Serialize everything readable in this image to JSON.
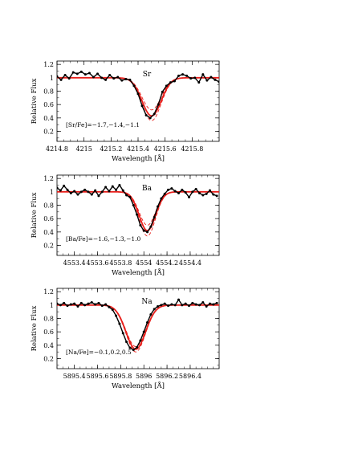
{
  "chart_data": [
    {
      "type": "line",
      "element": "Sr",
      "annotation": "[Sr/Fe]=−1.7,−1.4,−1.1",
      "xlabel": "Wavelength [Å]",
      "ylabel": "Relative Flux",
      "xlim": [
        4214.8,
        4216.0
      ],
      "ylim": [
        0.05,
        1.25
      ],
      "xticks": [
        4214.8,
        4215.0,
        4215.2,
        4215.4,
        4215.6,
        4215.8
      ],
      "xtick_labels": [
        "4214.8",
        "4215",
        "4215.2",
        "4215.4",
        "4215.6",
        "4215.8"
      ],
      "yticks": [
        0.2,
        0.4,
        0.6,
        0.8,
        1.0,
        1.2
      ],
      "ytick_labels": [
        "0.2",
        "0.4",
        "0.6",
        "0.8",
        "1",
        "1.2"
      ],
      "grid": false,
      "observed": {
        "x": [
          4214.8,
          4214.83,
          4214.86,
          4214.89,
          4214.92,
          4214.95,
          4214.98,
          4215.01,
          4215.04,
          4215.07,
          4215.1,
          4215.13,
          4215.16,
          4215.19,
          4215.22,
          4215.25,
          4215.28,
          4215.31,
          4215.34,
          4215.37,
          4215.4,
          4215.43,
          4215.46,
          4215.49,
          4215.52,
          4215.55,
          4215.58,
          4215.61,
          4215.64,
          4215.67,
          4215.7,
          4215.73,
          4215.76,
          4215.79,
          4215.82,
          4215.85,
          4215.88,
          4215.91,
          4215.94,
          4215.97,
          4216.0
        ],
        "y": [
          1.02,
          0.97,
          1.04,
          0.99,
          1.08,
          1.06,
          1.09,
          1.05,
          1.07,
          1.01,
          1.06,
          1.0,
          0.97,
          1.04,
          0.99,
          1.01,
          0.96,
          0.98,
          0.97,
          0.88,
          0.76,
          0.58,
          0.44,
          0.4,
          0.46,
          0.6,
          0.79,
          0.88,
          0.93,
          0.95,
          1.03,
          1.05,
          1.03,
          0.99,
          1.0,
          0.93,
          1.05,
          0.96,
          1.01,
          0.97,
          0.94
        ]
      },
      "synthetic": {
        "center": 4215.5,
        "depths": [
          0.48,
          0.57,
          0.64
        ],
        "width": 0.1,
        "labels": [
          "[Sr/Fe]=−1.7",
          "[Sr/Fe]=−1.4",
          "[Sr/Fe]=−1.1"
        ]
      }
    },
    {
      "type": "line",
      "element": "Ba",
      "annotation": "[Ba/Fe]=−1.6,−1.3,−1.0",
      "xlabel": "Wavelength [Å]",
      "ylabel": "Relative Flux",
      "xlim": [
        4553.25,
        4554.65
      ],
      "ylim": [
        0.05,
        1.25
      ],
      "xticks": [
        4553.4,
        4553.6,
        4553.8,
        4554.0,
        4554.2,
        4554.4
      ],
      "xtick_labels": [
        "4553.4",
        "4553.6",
        "4553.8",
        "4554",
        "4554.2",
        "4554.4"
      ],
      "yticks": [
        0.2,
        0.4,
        0.6,
        0.8,
        1.0,
        1.2
      ],
      "ytick_labels": [
        "0.2",
        "0.4",
        "0.6",
        "0.8",
        "1",
        "1.2"
      ],
      "grid": false,
      "observed": {
        "x": [
          4553.25,
          4553.28,
          4553.31,
          4553.34,
          4553.37,
          4553.4,
          4553.43,
          4553.46,
          4553.49,
          4553.52,
          4553.55,
          4553.58,
          4553.61,
          4553.64,
          4553.67,
          4553.7,
          4553.73,
          4553.76,
          4553.79,
          4553.82,
          4553.85,
          4553.88,
          4553.91,
          4553.94,
          4553.97,
          4554.0,
          4554.03,
          4554.06,
          4554.09,
          4554.12,
          4554.15,
          4554.18,
          4554.21,
          4554.24,
          4554.27,
          4554.3,
          4554.33,
          4554.36,
          4554.39,
          4554.42,
          4554.45,
          4554.48,
          4554.51,
          4554.54,
          4554.57,
          4554.6,
          4554.63
        ],
        "y": [
          1.06,
          1.02,
          1.09,
          1.03,
          0.98,
          1.01,
          0.96,
          1.0,
          1.03,
          1.0,
          0.96,
          1.02,
          0.94,
          1.0,
          1.07,
          1.01,
          1.08,
          1.03,
          1.1,
          1.02,
          0.95,
          0.92,
          0.8,
          0.66,
          0.5,
          0.42,
          0.4,
          0.48,
          0.62,
          0.78,
          0.9,
          0.97,
          1.03,
          1.05,
          1.01,
          0.98,
          1.03,
          0.99,
          0.92,
          1.0,
          1.04,
          0.98,
          0.95,
          0.97,
          1.02,
          0.96,
          0.94
        ]
      },
      "synthetic": {
        "center": 4554.03,
        "depths": [
          0.5,
          0.58,
          0.66
        ],
        "width": 0.1,
        "labels": [
          "[Ba/Fe]=−1.6",
          "[Ba/Fe]=−1.3",
          "[Ba/Fe]=−1.0"
        ]
      }
    },
    {
      "type": "line",
      "element": "Na",
      "annotation": "[Na/Fe]=−0.1,0.2,0.5",
      "xlabel": "Wavelength [Å]",
      "ylabel": "Relative Flux",
      "xlim": [
        5895.25,
        5896.65
      ],
      "ylim": [
        0.05,
        1.25
      ],
      "xticks": [
        5895.4,
        5895.6,
        5895.8,
        5896.0,
        5896.2,
        5896.4
      ],
      "xtick_labels": [
        "5895.4",
        "5895.6",
        "5895.8",
        "5896",
        "5896.2",
        "5896.4"
      ],
      "yticks": [
        0.2,
        0.4,
        0.6,
        0.8,
        1.0,
        1.2
      ],
      "ytick_labels": [
        "0.2",
        "0.4",
        "0.6",
        "0.8",
        "1",
        "1.2"
      ],
      "grid": false,
      "observed": {
        "x": [
          5895.25,
          5895.28,
          5895.31,
          5895.34,
          5895.37,
          5895.4,
          5895.43,
          5895.46,
          5895.49,
          5895.52,
          5895.55,
          5895.58,
          5895.61,
          5895.64,
          5895.67,
          5895.7,
          5895.73,
          5895.76,
          5895.79,
          5895.82,
          5895.85,
          5895.88,
          5895.91,
          5895.94,
          5895.97,
          5896.0,
          5896.03,
          5896.06,
          5896.09,
          5896.12,
          5896.15,
          5896.18,
          5896.21,
          5896.24,
          5896.27,
          5896.3,
          5896.33,
          5896.36,
          5896.39,
          5896.42,
          5896.45,
          5896.48,
          5896.51,
          5896.54,
          5896.57,
          5896.6,
          5896.63
        ],
        "y": [
          1.02,
          1.0,
          1.03,
          0.99,
          1.01,
          1.02,
          0.98,
          1.03,
          1.0,
          1.02,
          1.04,
          1.01,
          1.03,
          0.99,
          1.01,
          0.97,
          0.93,
          0.84,
          0.72,
          0.58,
          0.45,
          0.36,
          0.33,
          0.37,
          0.47,
          0.6,
          0.74,
          0.86,
          0.94,
          0.98,
          1.0,
          1.02,
          0.99,
          1.01,
          1.0,
          1.08,
          1.0,
          1.02,
          0.99,
          1.03,
          1.01,
          1.0,
          1.04,
          0.98,
          1.02,
          1.01,
          1.03
        ]
      },
      "synthetic": {
        "center": 5895.93,
        "depths": [
          0.62,
          0.66,
          0.7
        ],
        "width": 0.12,
        "labels": [
          "[Na/Fe]=−0.1",
          "[Na/Fe]=0.2",
          "[Na/Fe]=0.5"
        ]
      }
    }
  ]
}
